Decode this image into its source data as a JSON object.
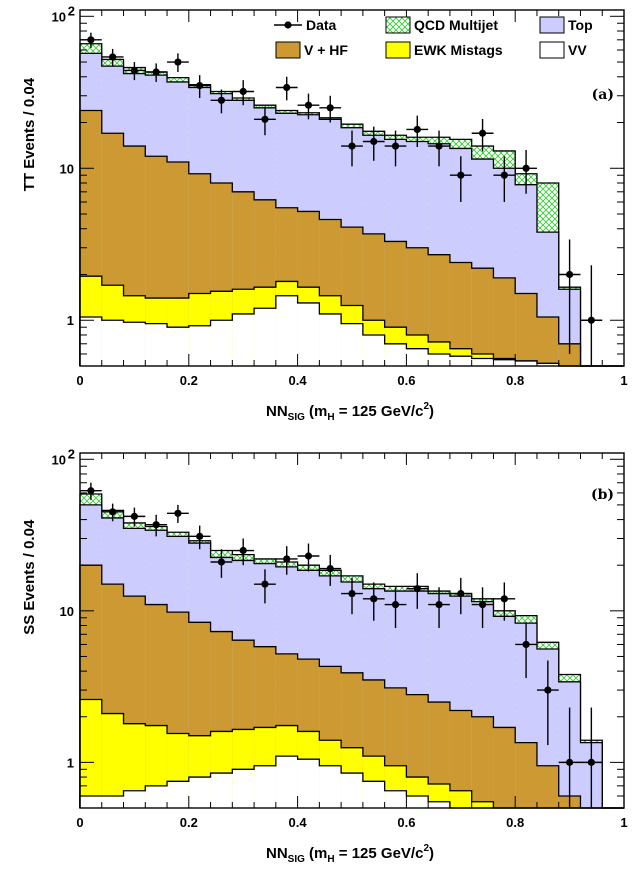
{
  "colors": {
    "top": "#ccccff",
    "vhf": "#cc9933",
    "ewk": "#ffff00",
    "vv": "#ffffff",
    "qcd_pattern": "#33cc33",
    "data": "#000000"
  },
  "chart_data": [
    {
      "type": "bar",
      "panel_label": "(a)",
      "ylabel": "TT Events / 0.04",
      "xlabel_main": "NN",
      "xlabel_sub": "SIG",
      "xlabel_rest": " (m",
      "xlabel_msub": "H",
      "xlabel_tail": " = 125 GeV/c",
      "xlabel_sup": "2",
      "xlabel_close": ")",
      "x_ticks": [
        "0",
        "0.2",
        "0.4",
        "0.6",
        "0.8",
        "1"
      ],
      "y_ticks": [
        {
          "value": 1,
          "label": "1"
        },
        {
          "value": 10,
          "label": "10"
        },
        {
          "value": 100,
          "label": "10",
          "sup": "2"
        }
      ],
      "xlim": [
        0,
        1
      ],
      "ylim": [
        0.5,
        110
      ],
      "yscale": "log",
      "legend": [
        {
          "key": "data",
          "label": "Data"
        },
        {
          "key": "qcd",
          "label": "QCD Multijet"
        },
        {
          "key": "top",
          "label": "Top"
        },
        {
          "key": "vhf",
          "label": "V + HF"
        },
        {
          "key": "ewk",
          "label": "EWK Mistags"
        },
        {
          "key": "vv",
          "label": "VV"
        }
      ],
      "bin_edges": [
        0,
        0.04,
        0.08,
        0.12,
        0.16,
        0.2,
        0.24,
        0.28,
        0.32,
        0.36,
        0.4,
        0.44,
        0.48,
        0.52,
        0.56,
        0.6,
        0.64,
        0.68,
        0.72,
        0.76,
        0.8,
        0.84,
        0.88,
        0.92,
        0.96,
        1.0
      ],
      "stack": {
        "vv": [
          1.05,
          1.0,
          0.97,
          0.95,
          0.9,
          0.92,
          1.0,
          1.1,
          1.2,
          1.45,
          1.3,
          1.1,
          0.95,
          0.8,
          0.7,
          0.65,
          0.6,
          0.58,
          0.56,
          0.55,
          0.54,
          0.52,
          0.5,
          0.5,
          0.5
        ],
        "ewk": [
          1.95,
          1.7,
          1.45,
          1.4,
          1.4,
          1.5,
          1.55,
          1.6,
          1.65,
          1.8,
          1.65,
          1.45,
          1.25,
          1.0,
          0.9,
          0.8,
          0.72,
          0.65,
          0.6,
          0.56,
          0.54,
          0.52,
          0.5,
          0.5,
          0.5
        ],
        "vhf": [
          24,
          17,
          14,
          12,
          11,
          9.2,
          8.0,
          7.0,
          6.2,
          5.5,
          5.2,
          4.6,
          4.1,
          3.7,
          3.3,
          3.0,
          2.7,
          2.4,
          2.2,
          1.9,
          1.5,
          1.05,
          0.7,
          0.5,
          0.5
        ],
        "top": [
          57,
          47,
          42,
          41,
          37,
          34,
          31,
          28,
          25,
          23,
          22.5,
          21,
          18.5,
          16.5,
          15.5,
          15,
          14.5,
          13.5,
          11.5,
          10,
          7.8,
          3.8,
          1.6,
          0.5,
          0.5
        ],
        "qcd": [
          66,
          52,
          46,
          43,
          39.5,
          35.5,
          32,
          29,
          26,
          24,
          23.2,
          21.5,
          19.5,
          17.5,
          16.5,
          16,
          16,
          15.5,
          14,
          13,
          9.2,
          8,
          1.65,
          0.5,
          0.5
        ]
      },
      "data_points": [
        {
          "x": 0.02,
          "y": 70,
          "lo": 62,
          "hi": 78
        },
        {
          "x": 0.06,
          "y": 54,
          "lo": 47,
          "hi": 61
        },
        {
          "x": 0.1,
          "y": 44,
          "lo": 38,
          "hi": 50
        },
        {
          "x": 0.14,
          "y": 43,
          "lo": 37,
          "hi": 49
        },
        {
          "x": 0.18,
          "y": 50,
          "lo": 43,
          "hi": 57
        },
        {
          "x": 0.22,
          "y": 35,
          "lo": 29,
          "hi": 41
        },
        {
          "x": 0.26,
          "y": 28,
          "lo": 23,
          "hi": 33
        },
        {
          "x": 0.3,
          "y": 32,
          "lo": 26,
          "hi": 38
        },
        {
          "x": 0.34,
          "y": 21,
          "lo": 16.5,
          "hi": 25.5
        },
        {
          "x": 0.38,
          "y": 34,
          "lo": 28,
          "hi": 40
        },
        {
          "x": 0.42,
          "y": 26,
          "lo": 21,
          "hi": 31
        },
        {
          "x": 0.46,
          "y": 25,
          "lo": 20,
          "hi": 30
        },
        {
          "x": 0.5,
          "y": 14,
          "lo": 10.3,
          "hi": 17.7
        },
        {
          "x": 0.54,
          "y": 15,
          "lo": 11.2,
          "hi": 18.8
        },
        {
          "x": 0.58,
          "y": 14,
          "lo": 10.3,
          "hi": 17.7
        },
        {
          "x": 0.62,
          "y": 18,
          "lo": 13.8,
          "hi": 22.2
        },
        {
          "x": 0.66,
          "y": 14,
          "lo": 10.3,
          "hi": 17.7
        },
        {
          "x": 0.7,
          "y": 9,
          "lo": 6,
          "hi": 12
        },
        {
          "x": 0.74,
          "y": 17,
          "lo": 12.9,
          "hi": 21.1
        },
        {
          "x": 0.78,
          "y": 9,
          "lo": 6,
          "hi": 12
        },
        {
          "x": 0.82,
          "y": 10,
          "lo": 6.8,
          "hi": 13.2
        },
        {
          "x": 0.9,
          "y": 2,
          "lo": 0.6,
          "hi": 3.4
        },
        {
          "x": 0.94,
          "y": 1,
          "lo": 0.3,
          "hi": 2.3
        }
      ]
    },
    {
      "type": "bar",
      "panel_label": "(b)",
      "ylabel": "SS Events / 0.04",
      "xlabel_main": "NN",
      "xlabel_sub": "SIG",
      "xlabel_rest": " (m",
      "xlabel_msub": "H",
      "xlabel_tail": " = 125 GeV/c",
      "xlabel_sup": "2",
      "xlabel_close": ")",
      "x_ticks": [
        "0",
        "0.2",
        "0.4",
        "0.6",
        "0.8",
        "1"
      ],
      "y_ticks": [
        {
          "value": 1,
          "label": "1"
        },
        {
          "value": 10,
          "label": "10"
        },
        {
          "value": 100,
          "label": "10",
          "sup": "2"
        }
      ],
      "xlim": [
        0,
        1
      ],
      "ylim": [
        0.5,
        110
      ],
      "yscale": "log",
      "bin_edges": [
        0,
        0.04,
        0.08,
        0.12,
        0.16,
        0.2,
        0.24,
        0.28,
        0.32,
        0.36,
        0.4,
        0.44,
        0.48,
        0.52,
        0.56,
        0.6,
        0.64,
        0.68,
        0.72,
        0.76,
        0.8,
        0.84,
        0.88,
        0.92,
        0.96,
        1.0
      ],
      "stack": {
        "vv": [
          0.6,
          0.6,
          0.65,
          0.7,
          0.75,
          0.8,
          0.85,
          0.9,
          0.95,
          1.1,
          1.05,
          0.95,
          0.85,
          0.75,
          0.65,
          0.6,
          0.55,
          0.5,
          0.5,
          0.5,
          0.5,
          0.5,
          0.5,
          0.5,
          0.5
        ],
        "ewk": [
          2.6,
          2.1,
          1.8,
          1.75,
          1.55,
          1.5,
          1.6,
          1.65,
          1.7,
          1.75,
          1.6,
          1.4,
          1.25,
          1.1,
          0.95,
          0.8,
          0.72,
          0.65,
          0.55,
          0.5,
          0.5,
          0.5,
          0.5,
          0.5,
          0.5
        ],
        "vhf": [
          20,
          15,
          12.5,
          11,
          9.8,
          8.4,
          7.3,
          6.4,
          5.8,
          5.2,
          4.8,
          4.3,
          3.9,
          3.5,
          3.1,
          2.8,
          2.5,
          2.2,
          2.0,
          1.7,
          1.35,
          0.95,
          0.6,
          0.5,
          0.5
        ],
        "top": [
          50,
          41,
          35,
          34,
          31,
          28,
          22.5,
          21.5,
          20.5,
          19.5,
          18.5,
          17,
          15.5,
          14,
          13.5,
          13.5,
          13,
          12.5,
          11.5,
          9.2,
          8.3,
          5.6,
          3.4,
          1.35,
          0.5
        ],
        "qcd": [
          59,
          46,
          38,
          36,
          33,
          29,
          25,
          23.5,
          22,
          21,
          20,
          18.5,
          17,
          15,
          14.5,
          14.5,
          13.5,
          13,
          12,
          10,
          9.3,
          6.2,
          3.8,
          1.4,
          0.5
        ]
      },
      "data_points": [
        {
          "x": 0.02,
          "y": 62,
          "lo": 54,
          "hi": 70
        },
        {
          "x": 0.06,
          "y": 45,
          "lo": 39,
          "hi": 51
        },
        {
          "x": 0.1,
          "y": 42,
          "lo": 36,
          "hi": 48
        },
        {
          "x": 0.14,
          "y": 37,
          "lo": 31,
          "hi": 43
        },
        {
          "x": 0.18,
          "y": 44,
          "lo": 38,
          "hi": 50
        },
        {
          "x": 0.22,
          "y": 31,
          "lo": 25.5,
          "hi": 36.5
        },
        {
          "x": 0.26,
          "y": 21,
          "lo": 16.5,
          "hi": 25.5
        },
        {
          "x": 0.3,
          "y": 25,
          "lo": 20,
          "hi": 30
        },
        {
          "x": 0.34,
          "y": 15,
          "lo": 11.2,
          "hi": 18.8
        },
        {
          "x": 0.38,
          "y": 22,
          "lo": 17.3,
          "hi": 26.7
        },
        {
          "x": 0.42,
          "y": 23,
          "lo": 18.2,
          "hi": 27.8
        },
        {
          "x": 0.46,
          "y": 19,
          "lo": 14.6,
          "hi": 23.4
        },
        {
          "x": 0.5,
          "y": 13,
          "lo": 9.5,
          "hi": 16.5
        },
        {
          "x": 0.54,
          "y": 12,
          "lo": 8.6,
          "hi": 15.4
        },
        {
          "x": 0.58,
          "y": 11,
          "lo": 7.7,
          "hi": 14.3
        },
        {
          "x": 0.62,
          "y": 14,
          "lo": 10.3,
          "hi": 17.7
        },
        {
          "x": 0.66,
          "y": 11,
          "lo": 7.7,
          "hi": 14.3
        },
        {
          "x": 0.7,
          "y": 13,
          "lo": 9.5,
          "hi": 16.5
        },
        {
          "x": 0.74,
          "y": 11,
          "lo": 7.7,
          "hi": 14.3
        },
        {
          "x": 0.78,
          "y": 12,
          "lo": 8.6,
          "hi": 15.4
        },
        {
          "x": 0.82,
          "y": 6,
          "lo": 3.6,
          "hi": 8.4
        },
        {
          "x": 0.86,
          "y": 3,
          "lo": 1.3,
          "hi": 4.7
        },
        {
          "x": 0.9,
          "y": 1,
          "lo": 0.3,
          "hi": 2.3
        },
        {
          "x": 0.94,
          "y": 1,
          "lo": 0.3,
          "hi": 2.3
        }
      ]
    }
  ]
}
